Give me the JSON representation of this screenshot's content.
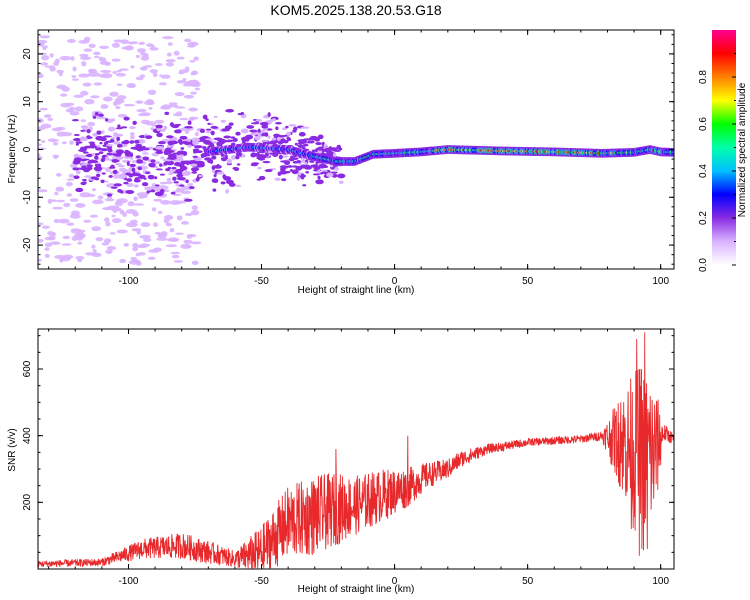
{
  "figure_title": "KOM5.2025.138.20.53.G18",
  "colors": {
    "snr_line": "#e8292c",
    "axes": "#000000"
  },
  "chart_data": [
    {
      "type": "heatmap",
      "xlabel": "Height of straight line (km)",
      "ylabel": "Frequency (Hz)",
      "xlim": [
        -134,
        105
      ],
      "ylim": [
        -25,
        25
      ],
      "x_ticks": [
        -100,
        -50,
        0,
        50,
        100
      ],
      "y_ticks": [
        -20,
        -10,
        0,
        10,
        20
      ],
      "colorbar": {
        "label": "Normalized spectral amplitude",
        "range": [
          0,
          1
        ],
        "ticks": [
          "0.0",
          "0.2",
          "0.4",
          "0.6",
          "0.8"
        ],
        "colormap": [
          "#ffffff",
          "#d9b3ff",
          "#8a2be2",
          "#0000ff",
          "#00bfff",
          "#00ffaa",
          "#00ff00",
          "#ffff00",
          "#ff8000",
          "#ff0000",
          "#ff0090"
        ]
      },
      "ridge_centerline": [
        [
          -85,
          -1.5
        ],
        [
          -70,
          -0.5
        ],
        [
          -55,
          0.5
        ],
        [
          -40,
          0
        ],
        [
          -30,
          -1.5
        ],
        [
          -22,
          -2.5
        ],
        [
          -15,
          -2.5
        ],
        [
          -8,
          -1
        ],
        [
          0,
          -0.8
        ],
        [
          10,
          -0.5
        ],
        [
          20,
          0
        ],
        [
          40,
          -0.3
        ],
        [
          60,
          -0.5
        ],
        [
          78,
          -0.8
        ],
        [
          90,
          -0.6
        ],
        [
          96,
          0
        ],
        [
          100,
          -0.5
        ],
        [
          105,
          -0.6
        ]
      ]
    },
    {
      "type": "line",
      "xlabel": "Height of straight line (km)",
      "ylabel": "SNR (v/v)",
      "xlim": [
        -134,
        105
      ],
      "ylim": [
        0,
        720
      ],
      "x_ticks": [
        -100,
        -50,
        0,
        50,
        100
      ],
      "y_ticks": [
        200,
        400,
        600
      ],
      "envelope": [
        {
          "x": -134,
          "y": 15,
          "amp": 10
        },
        {
          "x": -110,
          "y": 20,
          "amp": 12
        },
        {
          "x": -95,
          "y": 60,
          "amp": 30
        },
        {
          "x": -80,
          "y": 70,
          "amp": 40
        },
        {
          "x": -70,
          "y": 50,
          "amp": 35
        },
        {
          "x": -60,
          "y": 30,
          "amp": 25
        },
        {
          "x": -50,
          "y": 50,
          "amp": 80
        },
        {
          "x": -40,
          "y": 140,
          "amp": 110
        },
        {
          "x": -30,
          "y": 160,
          "amp": 120
        },
        {
          "x": -22,
          "y": 180,
          "amp": 110
        },
        {
          "x": -15,
          "y": 190,
          "amp": 90
        },
        {
          "x": -5,
          "y": 220,
          "amp": 80
        },
        {
          "x": 5,
          "y": 245,
          "amp": 60
        },
        {
          "x": 12,
          "y": 280,
          "amp": 40
        },
        {
          "x": 20,
          "y": 300,
          "amp": 30
        },
        {
          "x": 25,
          "y": 330,
          "amp": 25
        },
        {
          "x": 35,
          "y": 360,
          "amp": 15
        },
        {
          "x": 50,
          "y": 380,
          "amp": 12
        },
        {
          "x": 70,
          "y": 390,
          "amp": 12
        },
        {
          "x": 78,
          "y": 400,
          "amp": 15
        },
        {
          "x": 82,
          "y": 390,
          "amp": 90
        },
        {
          "x": 88,
          "y": 370,
          "amp": 200
        },
        {
          "x": 93,
          "y": 330,
          "amp": 300
        },
        {
          "x": 98,
          "y": 350,
          "amp": 200
        },
        {
          "x": 101,
          "y": 410,
          "amp": 30
        },
        {
          "x": 105,
          "y": 390,
          "amp": 15
        }
      ],
      "spikes": [
        {
          "x": -22,
          "y": 360
        },
        {
          "x": 5,
          "y": 400
        },
        {
          "x": 91,
          "y": 690
        },
        {
          "x": 94,
          "y": 710
        },
        {
          "x": 96,
          "y": 520
        },
        {
          "x": 85,
          "y": 500
        },
        {
          "x": 92,
          "y": 40
        },
        {
          "x": 95,
          "y": 60
        },
        {
          "x": 89,
          "y": 120
        }
      ]
    }
  ]
}
